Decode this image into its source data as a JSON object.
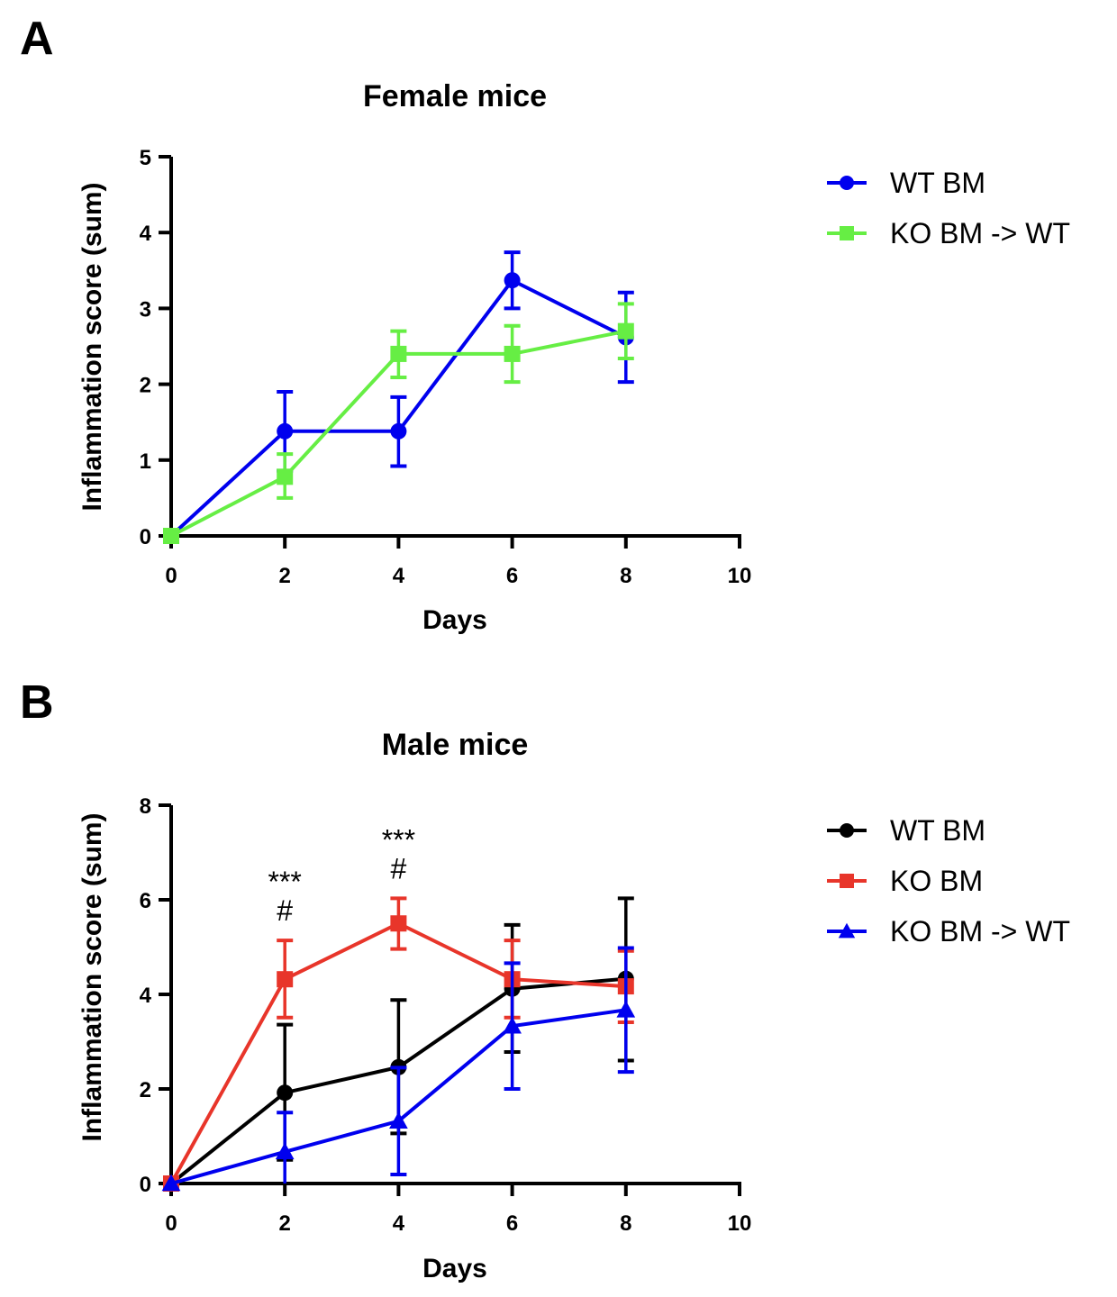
{
  "chart_data": [
    {
      "panel": "A",
      "type": "line",
      "title": "Female mice",
      "xlabel": "Days",
      "ylabel": "Inflammation score (sum)",
      "xlim": [
        0,
        10
      ],
      "ylim": [
        0,
        5
      ],
      "xticks": [
        0,
        2,
        4,
        6,
        8,
        10
      ],
      "yticks": [
        0,
        1,
        2,
        3,
        4,
        5
      ],
      "grid": false,
      "legend_position": "top-right",
      "x": [
        0,
        2,
        4,
        6,
        8
      ],
      "series": [
        {
          "name": "WT BM",
          "color": "#0000ee",
          "marker": "circle",
          "values": [
            0,
            1.38,
            1.38,
            3.37,
            2.62
          ],
          "err_upper": [
            0,
            1.9,
            1.83,
            3.74,
            3.21
          ],
          "err_lower": [
            0,
            0.86,
            0.92,
            3.0,
            2.03
          ]
        },
        {
          "name": "KO BM -> WT",
          "color": "#66ee44",
          "marker": "square",
          "values": [
            0,
            0.78,
            2.4,
            2.4,
            2.7
          ],
          "err_upper": [
            0,
            1.08,
            2.7,
            2.77,
            3.06
          ],
          "err_lower": [
            0,
            0.5,
            2.09,
            2.03,
            2.34
          ]
        }
      ],
      "annotations": []
    },
    {
      "panel": "B",
      "type": "line",
      "title": "Male mice",
      "xlabel": "Days",
      "ylabel": "Inflammation score (sum)",
      "xlim": [
        0,
        10
      ],
      "ylim": [
        0,
        8
      ],
      "xticks": [
        0,
        2,
        4,
        6,
        8,
        10
      ],
      "yticks": [
        0,
        2,
        4,
        6,
        8
      ],
      "grid": false,
      "legend_position": "top-right",
      "x": [
        0,
        2,
        4,
        6,
        8
      ],
      "series": [
        {
          "name": "WT BM",
          "color": "#000000",
          "marker": "circle",
          "values": [
            0,
            1.92,
            2.46,
            4.12,
            4.33
          ],
          "err_upper": [
            0,
            3.36,
            3.88,
            5.47,
            6.03
          ],
          "err_lower": [
            0,
            0.5,
            1.06,
            2.78,
            2.6
          ]
        },
        {
          "name": "KO BM",
          "color": "#e8352a",
          "marker": "square",
          "values": [
            0,
            4.32,
            5.5,
            4.32,
            4.17
          ],
          "err_upper": [
            0,
            5.14,
            6.03,
            5.14,
            4.92
          ],
          "err_lower": [
            0,
            3.51,
            4.96,
            3.51,
            3.41
          ]
        },
        {
          "name": "KO BM -> WT",
          "color": "#0000ee",
          "marker": "triangle",
          "values": [
            0,
            0.67,
            1.32,
            3.33,
            3.67
          ],
          "err_upper": [
            0,
            1.5,
            2.45,
            4.66,
            4.98
          ],
          "err_lower": [
            0,
            0,
            0.19,
            2.0,
            2.36
          ]
        }
      ],
      "annotations": [
        {
          "x": 2,
          "lines": [
            "***",
            "#"
          ]
        },
        {
          "x": 4,
          "lines": [
            "***",
            "#"
          ]
        }
      ]
    }
  ]
}
